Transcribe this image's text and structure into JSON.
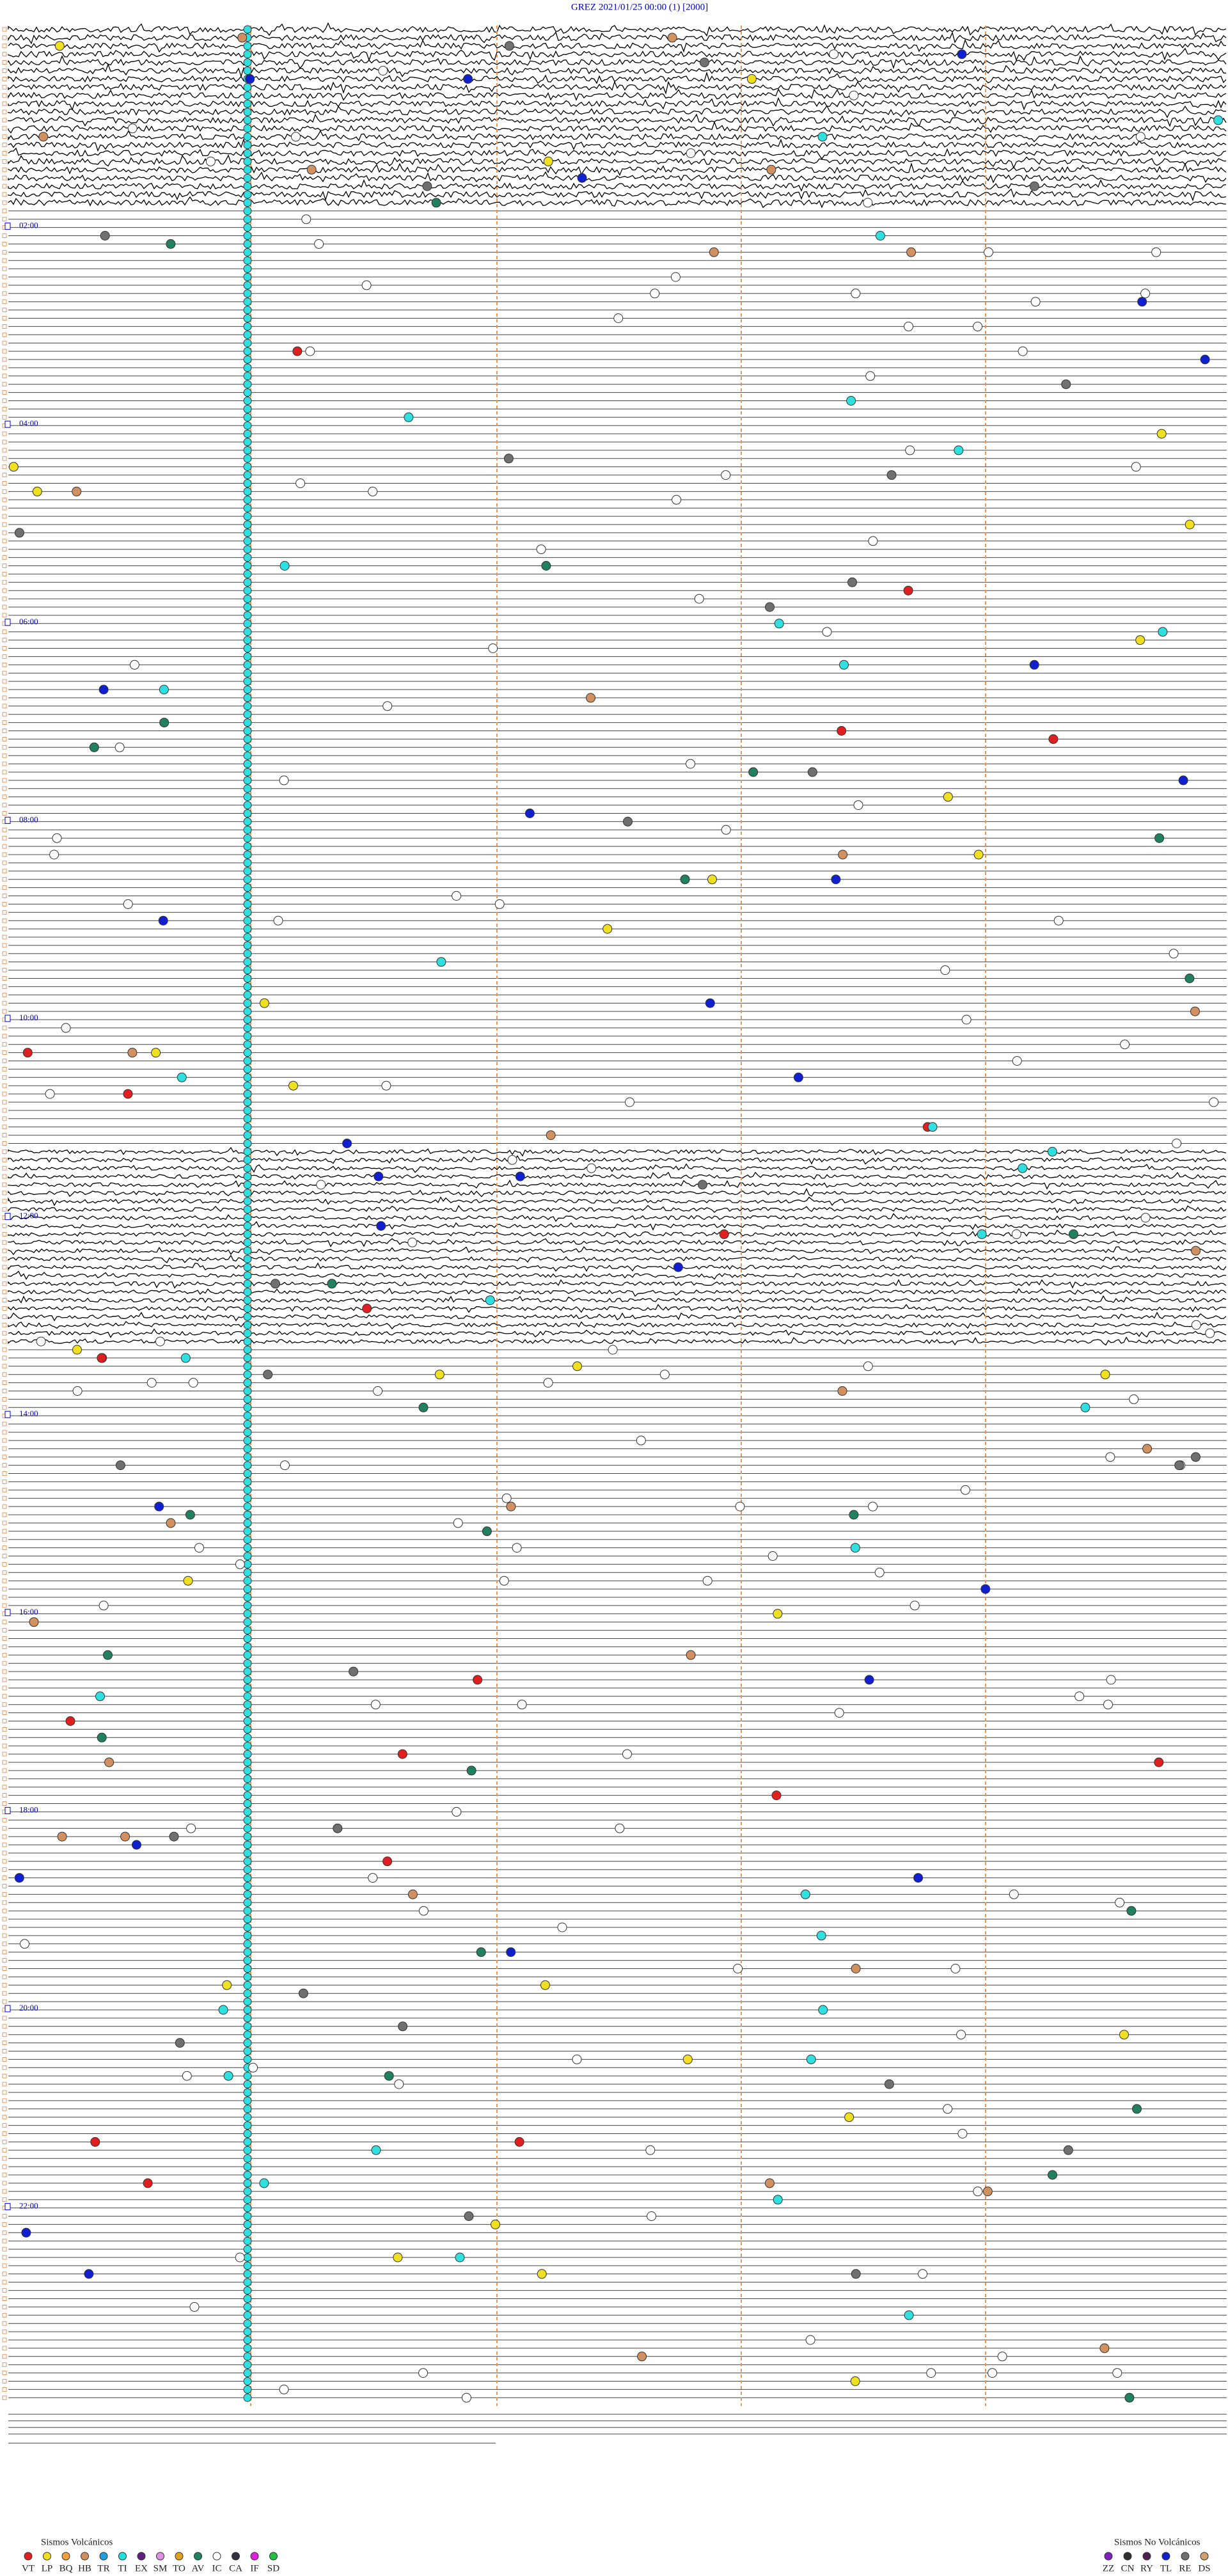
{
  "header": {
    "title": "GREZ    2021/01/25 00:00    (1)    [2000]"
  },
  "hour_labels": [
    "02:00",
    "04:00",
    "06:00",
    "08:00",
    "10:00",
    "12:00",
    "14:00",
    "16:00",
    "18:00",
    "20:00",
    "22:00"
  ],
  "legend_volcanic": {
    "title": "Sismos Volcánicos",
    "items": [
      "VT",
      "LP",
      "BQ",
      "HB",
      "TR",
      "TI",
      "EX",
      "SM",
      "TO",
      "AV",
      "IC",
      "CA",
      "IF",
      "SD"
    ]
  },
  "legend_non_volcanic": {
    "title": "Sismos No Volcánicos",
    "items": [
      "ZZ",
      "CN",
      "RY",
      "TL",
      "RE",
      "DS"
    ]
  }
}
